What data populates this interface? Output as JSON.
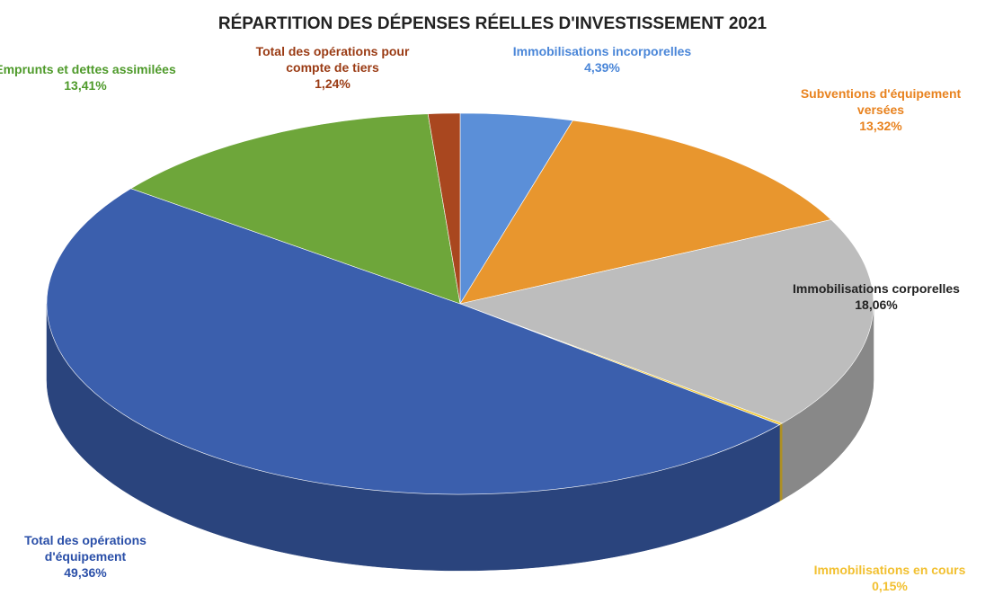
{
  "chart_data": {
    "type": "pie",
    "title": "RÉPARTITION DES DÉPENSES RÉELLES D'INVESTISSEMENT 2021",
    "categories": [
      "Immobilisations incorporelles",
      "Subventions d'équipement versées",
      "Immobilisations corporelles",
      "Immobilisations en cours",
      "Total des opérations d'équipement",
      "Emprunts et dettes assimilées",
      "Total des opérations pour compte de tiers"
    ],
    "values": [
      4.39,
      13.32,
      18.06,
      0.15,
      49.36,
      13.41,
      1.24
    ],
    "value_labels": [
      "4,39%",
      "13,32%",
      "18,06%",
      "0,15%",
      "49,36%",
      "13,41%",
      "1,24%"
    ],
    "colors": [
      "#5b8fd8",
      "#e8962e",
      "#bdbdbd",
      "#f2c830",
      "#3b5fad",
      "#6ea63a",
      "#a9471f"
    ]
  }
}
